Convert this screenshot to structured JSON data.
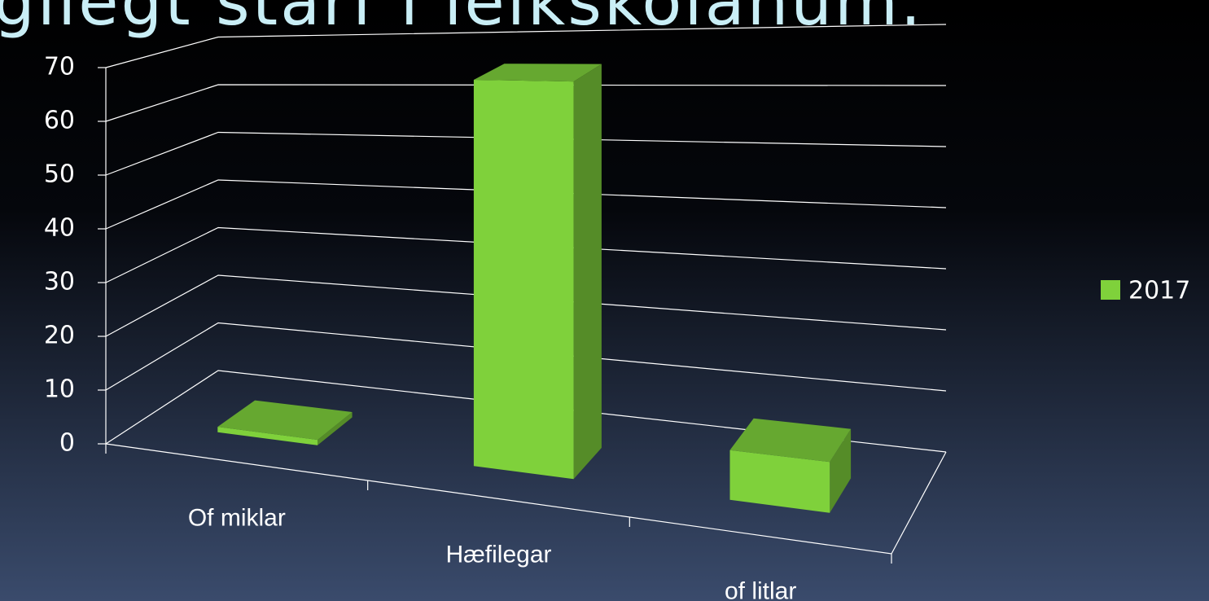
{
  "chart_data": {
    "type": "bar3d",
    "title": "gilegt starf í leikskólanum.",
    "categories": [
      "Of miklar",
      "Hæfilegar",
      "of litlar"
    ],
    "series": [
      {
        "name": "2017",
        "color": "#7fd13b",
        "values": [
          1,
          67,
          8
        ]
      }
    ],
    "ylim": [
      0,
      70
    ],
    "yticks": [
      0,
      10,
      20,
      30,
      40,
      50,
      60,
      70
    ],
    "grid": true,
    "legend": "right"
  }
}
